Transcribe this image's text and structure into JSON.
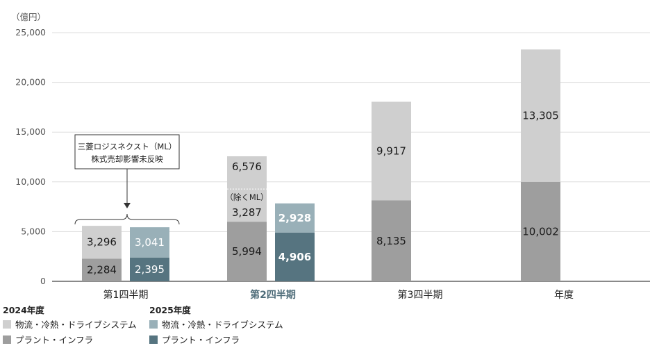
{
  "chart_data": {
    "type": "bar",
    "stacked": true,
    "unit_label": "（億円）",
    "ylim": [
      0,
      25000
    ],
    "yticks": [
      "0",
      "5,000",
      "10,000",
      "15,000",
      "20,000",
      "25,000"
    ],
    "grid": true,
    "categories": [
      "第1四半期",
      "第2四半期",
      "第3四半期",
      "年度"
    ],
    "highlight_category": "第2四半期",
    "years": [
      {
        "label": "2024年度",
        "series": [
          {
            "name": "プラント・インフラ",
            "color": "#9e9e9e",
            "values": [
              2284,
              5994,
              8135,
              10002
            ],
            "labels": [
              "2,284",
              "5,994",
              "8,135",
              "10,002"
            ]
          },
          {
            "name": "物流・冷熱・ドライブシステム",
            "color": "#cfcfcf",
            "values": [
              3296,
              6576,
              9917,
              13305
            ],
            "labels": [
              "3,296",
              "6,576",
              "9,917",
              "13,305"
            ]
          }
        ]
      },
      {
        "label": "2025年度",
        "series": [
          {
            "name": "プラント・インフラ",
            "color": "#567480",
            "values": [
              2395,
              4906
            ],
            "labels": [
              "2,395",
              "4,906"
            ]
          },
          {
            "name": "物流・冷熱・ドライブシステム",
            "color": "#99b0b8",
            "values": [
              3041,
              2928
            ],
            "labels": [
              "3,041",
              "2,928"
            ]
          }
        ]
      }
    ],
    "annotations": {
      "box_line1": "三菱ロジスネクスト（ML）",
      "box_line2": "株式売却影響未反映",
      "excl_label": "（除くML）",
      "excl_value": 3287,
      "excl_value_label": "3,287"
    }
  },
  "legend": {
    "groups": [
      {
        "header": "2024年度",
        "items": [
          {
            "label": "物流・冷熱・ドライブシステム",
            "color": "#cfcfcf"
          },
          {
            "label": "プラント・インフラ",
            "color": "#9e9e9e"
          }
        ]
      },
      {
        "header": "2025年度",
        "items": [
          {
            "label": "物流・冷熱・ドライブシステム",
            "color": "#99b0b8"
          },
          {
            "label": "プラント・インフラ",
            "color": "#567480"
          }
        ]
      }
    ]
  }
}
